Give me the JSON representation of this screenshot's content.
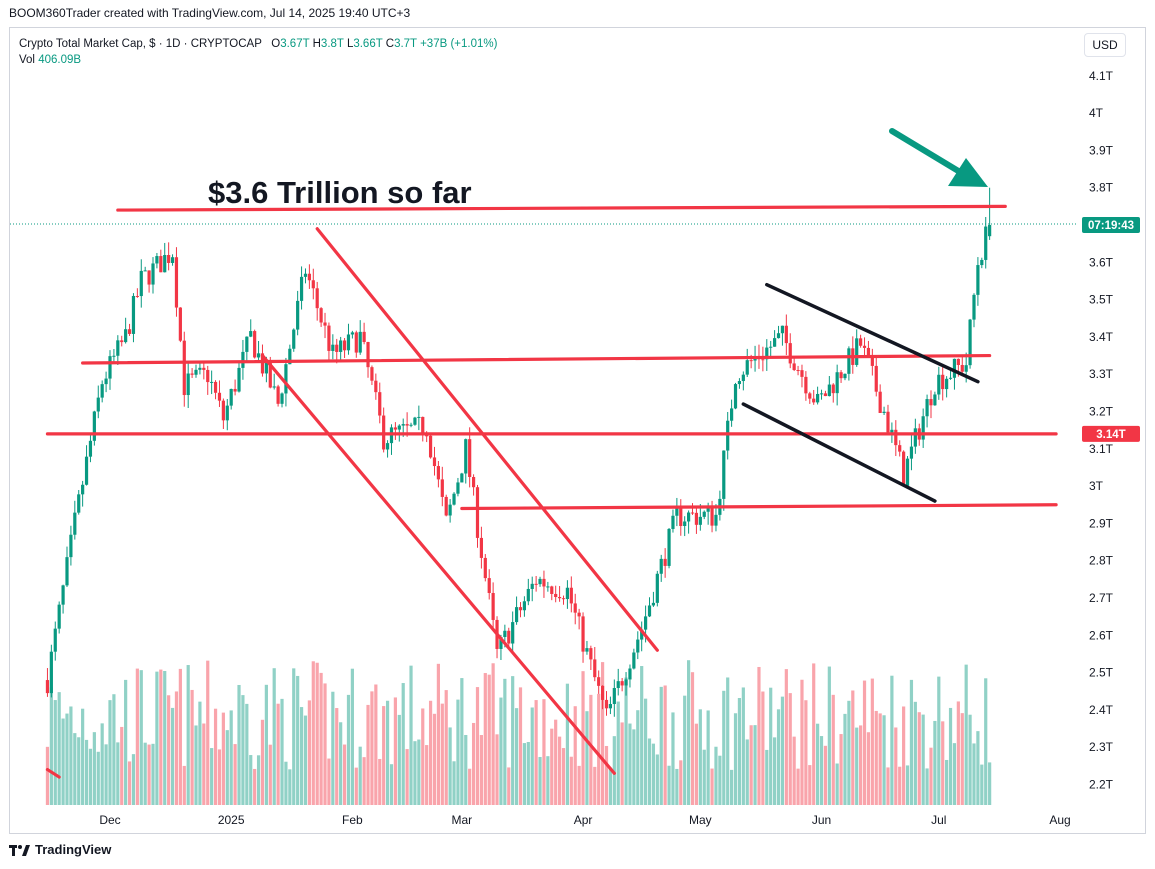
{
  "header": {
    "credit": "BOOM360Trader created with TradingView.com, Jul 14, 2025 19:40 UTC+3"
  },
  "legend": {
    "symbol": "Crypto Total Market Cap, $ · 1D · CRYPTOCAP",
    "o_label": "O",
    "o_value": "3.67T",
    "h_label": "H",
    "h_value": "3.8T",
    "l_label": "L",
    "l_value": "3.66T",
    "c_label": "C",
    "c_value": "3.7T",
    "change": "+37B (+1.01%)",
    "vol_label": "Vol",
    "vol_value": "406.09B"
  },
  "toolbar": {
    "currency_button": "USD"
  },
  "footer": {
    "brand": "TradingView"
  },
  "colors": {
    "up": "#089981",
    "down": "#f23645",
    "line": "#f23645",
    "arrow": "#089981"
  },
  "chart_data": {
    "type": "candlestick",
    "title": "",
    "annotation": "$3.6 Trillion so far",
    "y_ticks": [
      "4.1T",
      "4T",
      "3.9T",
      "3.8T",
      "3.7T",
      "3.6T",
      "3.5T",
      "3.4T",
      "3.3T",
      "3.2T",
      "3.1T",
      "3T",
      "2.9T",
      "2.8T",
      "2.7T",
      "2.6T",
      "2.5T",
      "2.4T",
      "2.3T",
      "2.2T"
    ],
    "y_tick_values": [
      4.1,
      4.0,
      3.9,
      3.8,
      3.7,
      3.6,
      3.5,
      3.4,
      3.3,
      3.2,
      3.1,
      3.0,
      2.9,
      2.8,
      2.7,
      2.6,
      2.5,
      2.4,
      2.3,
      2.2
    ],
    "ylim": [
      2.17,
      4.17
    ],
    "x_ticks": [
      {
        "label": "Dec",
        "date": "2024-12-01"
      },
      {
        "label": "2025",
        "date": "2025-01-01"
      },
      {
        "label": "Feb",
        "date": "2025-02-01"
      },
      {
        "label": "Mar",
        "date": "2025-03-01"
      },
      {
        "label": "Apr",
        "date": "2025-04-01"
      },
      {
        "label": "May",
        "date": "2025-05-01"
      },
      {
        "label": "Jun",
        "date": "2025-06-01"
      },
      {
        "label": "Jul",
        "date": "2025-07-01"
      },
      {
        "label": "Aug",
        "date": "2025-08-01"
      }
    ],
    "price_badges": [
      {
        "label": "07:19:43",
        "value": 3.7,
        "color": "#089981"
      },
      {
        "label": "3.14T",
        "value": 3.14,
        "color": "#f23645"
      }
    ],
    "trend_lines": [
      {
        "color": "#f23645",
        "from": [
          "2024-12-03",
          3.74
        ],
        "to": [
          "2025-07-18",
          3.75
        ]
      },
      {
        "color": "#f23645",
        "from": [
          "2024-11-24",
          3.33
        ],
        "to": [
          "2025-07-14",
          3.35
        ]
      },
      {
        "color": "#f23645",
        "from": [
          "2024-11-15",
          3.14
        ],
        "to": [
          "2025-07-31",
          3.14
        ]
      },
      {
        "color": "#f23645",
        "from": [
          "2025-03-01",
          2.94
        ],
        "to": [
          "2025-07-31",
          2.95
        ]
      },
      {
        "color": "#f23645",
        "from": [
          "2025-01-23",
          3.69
        ],
        "to": [
          "2025-04-20",
          2.56
        ]
      },
      {
        "color": "#f23645",
        "from": [
          "2025-01-09",
          3.35
        ],
        "to": [
          "2025-04-09",
          2.23
        ]
      },
      {
        "color": "#f23645",
        "from": [
          "2024-11-15",
          2.24
        ],
        "to": [
          "2024-11-18",
          2.22
        ]
      },
      {
        "color": "#131722",
        "from": [
          "2025-05-18",
          3.54
        ],
        "to": [
          "2025-07-11",
          3.28
        ]
      },
      {
        "color": "#131722",
        "from": [
          "2025-05-12",
          3.22
        ],
        "to": [
          "2025-06-30",
          2.96
        ]
      }
    ],
    "series": [
      {
        "name": "",
        "type": "candlestick",
        "ohlc_keypoints": [
          {
            "date": "2024-11-15",
            "close": 2.48
          },
          {
            "date": "2024-11-22",
            "close": 2.9
          },
          {
            "date": "2024-11-29",
            "close": 3.28
          },
          {
            "date": "2024-12-05",
            "close": 3.4
          },
          {
            "date": "2024-12-09",
            "close": 3.55
          },
          {
            "date": "2024-12-17",
            "close": 3.63
          },
          {
            "date": "2024-12-20",
            "close": 3.27
          },
          {
            "date": "2024-12-26",
            "close": 3.3
          },
          {
            "date": "2024-12-30",
            "close": 3.18
          },
          {
            "date": "2025-01-06",
            "close": 3.4
          },
          {
            "date": "2025-01-13",
            "close": 3.22
          },
          {
            "date": "2025-01-20",
            "close": 3.58
          },
          {
            "date": "2025-01-27",
            "close": 3.35
          },
          {
            "date": "2025-02-03",
            "close": 3.4
          },
          {
            "date": "2025-02-09",
            "close": 3.13
          },
          {
            "date": "2025-02-20",
            "close": 3.16
          },
          {
            "date": "2025-02-25",
            "close": 2.9
          },
          {
            "date": "2025-03-02",
            "close": 3.1
          },
          {
            "date": "2025-03-10",
            "close": 2.55
          },
          {
            "date": "2025-03-20",
            "close": 2.75
          },
          {
            "date": "2025-03-28",
            "close": 2.72
          },
          {
            "date": "2025-04-07",
            "close": 2.38
          },
          {
            "date": "2025-04-16",
            "close": 2.62
          },
          {
            "date": "2025-04-25",
            "close": 2.92
          },
          {
            "date": "2025-05-05",
            "close": 2.92
          },
          {
            "date": "2025-05-10",
            "close": 3.3
          },
          {
            "date": "2025-05-22",
            "close": 3.4
          },
          {
            "date": "2025-05-31",
            "close": 3.22
          },
          {
            "date": "2025-06-11",
            "close": 3.38
          },
          {
            "date": "2025-06-17",
            "close": 3.2
          },
          {
            "date": "2025-06-22",
            "close": 3.03
          },
          {
            "date": "2025-06-30",
            "close": 3.28
          },
          {
            "date": "2025-07-08",
            "close": 3.33
          },
          {
            "date": "2025-07-11",
            "close": 3.6
          },
          {
            "date": "2025-07-14",
            "close": 3.7
          }
        ]
      },
      {
        "name": "Vol",
        "type": "volume",
        "latest": "406.09B"
      }
    ],
    "grid": false
  }
}
